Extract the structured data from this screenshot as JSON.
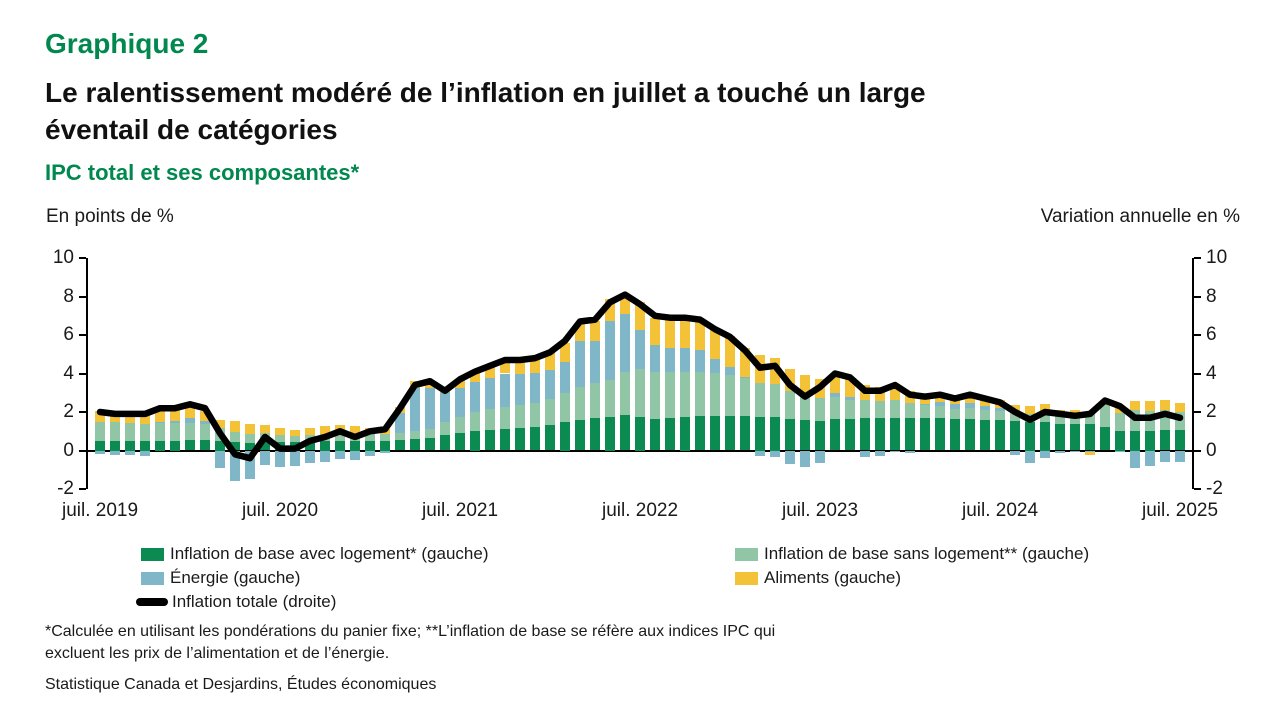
{
  "header": {
    "kicker": "Graphique 2",
    "title_lines": [
      "Le ralentissement modéré de l’inflation en juillet a touché un large",
      "éventail de catégories"
    ],
    "subtitle": "IPC total et ses composantes*"
  },
  "axis_headers": {
    "left": "En points de %",
    "right": "Variation annuelle en %"
  },
  "footnote_lines": [
    "*Calculée en utilisant les pondérations du panier fixe; **L’inflation de base se réfère aux indices IPC qui",
    "excluent les prix de l’alimentation et de l’énergie."
  ],
  "source": "Statistique Canada et Desjardins, Études économiques",
  "colors": {
    "title_green": "#00884e",
    "core_with_shelter": "#0b8a52",
    "core_without_shelter": "#90c6a6",
    "energy": "#7fb7c9",
    "food": "#f3c237",
    "total_line": "#000000"
  },
  "chart_data": {
    "type": "bar",
    "subtype": "stacked-bars-with-line-overlay",
    "ylim": [
      -2,
      10
    ],
    "y_ticks": [
      10,
      8,
      6,
      4,
      2,
      0,
      -2
    ],
    "x_tick_labels": [
      "juil. 2019",
      "juil. 2020",
      "juil. 2021",
      "juil. 2022",
      "juil. 2023",
      "juil. 2024",
      "juil. 2025"
    ],
    "grid": "off",
    "legend_position": "bottom",
    "months": [
      "2019-07",
      "2019-08",
      "2019-09",
      "2019-10",
      "2019-11",
      "2019-12",
      "2020-01",
      "2020-02",
      "2020-03",
      "2020-04",
      "2020-05",
      "2020-06",
      "2020-07",
      "2020-08",
      "2020-09",
      "2020-10",
      "2020-11",
      "2020-12",
      "2021-01",
      "2021-02",
      "2021-03",
      "2021-04",
      "2021-05",
      "2021-06",
      "2021-07",
      "2021-08",
      "2021-09",
      "2021-10",
      "2021-11",
      "2021-12",
      "2022-01",
      "2022-02",
      "2022-03",
      "2022-04",
      "2022-05",
      "2022-06",
      "2022-07",
      "2022-08",
      "2022-09",
      "2022-10",
      "2022-11",
      "2022-12",
      "2023-01",
      "2023-02",
      "2023-03",
      "2023-04",
      "2023-05",
      "2023-06",
      "2023-07",
      "2023-08",
      "2023-09",
      "2023-10",
      "2023-11",
      "2023-12",
      "2024-01",
      "2024-02",
      "2024-03",
      "2024-04",
      "2024-05",
      "2024-06",
      "2024-07",
      "2024-08",
      "2024-09",
      "2024-10",
      "2024-11",
      "2024-12",
      "2025-01",
      "2025-02",
      "2025-03",
      "2025-04",
      "2025-05",
      "2025-06",
      "2025-07"
    ],
    "series": [
      {
        "name": "Inflation de base avec logement* (gauche)",
        "type": "bar",
        "color": "#0b8a52",
        "values": [
          0.5,
          0.5,
          0.5,
          0.5,
          0.5,
          0.5,
          0.55,
          0.55,
          0.5,
          0.45,
          0.4,
          0.45,
          0.45,
          0.45,
          0.45,
          0.5,
          0.5,
          0.5,
          0.5,
          0.5,
          0.55,
          0.6,
          0.65,
          0.8,
          0.9,
          1.0,
          1.05,
          1.1,
          1.15,
          1.2,
          1.35,
          1.5,
          1.6,
          1.7,
          1.75,
          1.85,
          1.75,
          1.65,
          1.7,
          1.75,
          1.8,
          1.8,
          1.8,
          1.8,
          1.75,
          1.75,
          1.65,
          1.6,
          1.55,
          1.65,
          1.65,
          1.7,
          1.7,
          1.7,
          1.7,
          1.7,
          1.7,
          1.65,
          1.65,
          1.6,
          1.6,
          1.55,
          1.5,
          1.5,
          1.4,
          1.4,
          1.4,
          1.2,
          1.0,
          1.0,
          1.0,
          1.05,
          1.05
        ]
      },
      {
        "name": "Inflation de base sans logement** (gauche)",
        "type": "bar",
        "color": "#90c6a6",
        "values": [
          1.0,
          1.0,
          0.95,
          0.9,
          0.95,
          0.95,
          0.9,
          0.85,
          0.65,
          0.5,
          0.45,
          0.45,
          0.35,
          0.3,
          0.35,
          0.35,
          0.4,
          0.35,
          0.35,
          0.35,
          0.35,
          0.4,
          0.45,
          0.7,
          0.85,
          1.0,
          1.1,
          1.15,
          1.2,
          1.25,
          1.35,
          1.5,
          1.7,
          1.8,
          1.9,
          2.25,
          2.5,
          2.45,
          2.4,
          2.35,
          2.3,
          2.25,
          2.1,
          1.95,
          1.75,
          1.7,
          1.45,
          1.3,
          1.2,
          1.15,
          0.95,
          0.9,
          0.85,
          0.9,
          0.75,
          0.65,
          0.6,
          0.5,
          0.55,
          0.5,
          0.45,
          0.4,
          0.4,
          0.45,
          0.4,
          0.45,
          0.55,
          1.2,
          0.95,
          1.1,
          1.05,
          1.05,
          0.95
        ]
      },
      {
        "name": "Énergie (gauche)",
        "type": "bar",
        "color": "#7fb7c9",
        "values": [
          -0.2,
          -0.25,
          -0.25,
          -0.3,
          0.05,
          0.1,
          0.25,
          0.15,
          -0.9,
          -1.6,
          -1.5,
          -0.75,
          -0.85,
          -0.8,
          -0.65,
          -0.6,
          -0.45,
          -0.5,
          -0.3,
          -0.15,
          1.05,
          2.25,
          2.15,
          1.55,
          1.5,
          1.55,
          1.6,
          1.75,
          1.6,
          1.6,
          1.5,
          1.6,
          2.4,
          2.2,
          3.1,
          3.0,
          2.0,
          1.4,
          1.2,
          1.2,
          1.1,
          0.7,
          0.45,
          0.05,
          -0.3,
          -0.35,
          -0.7,
          -0.85,
          -0.65,
          0.2,
          0.2,
          -0.35,
          -0.3,
          -0.1,
          -0.15,
          0.05,
          0.2,
          0.25,
          0.25,
          0.2,
          0.15,
          -0.25,
          -0.65,
          -0.4,
          -0.15,
          -0.1,
          -0.1,
          0.15,
          -0.1,
          -0.9,
          -0.8,
          -0.6,
          -0.6
        ]
      },
      {
        "name": "Aliments (gauche)",
        "type": "bar",
        "color": "#f3c237",
        "values": [
          0.55,
          0.55,
          0.55,
          0.55,
          0.6,
          0.6,
          0.55,
          0.5,
          0.45,
          0.6,
          0.55,
          0.45,
          0.35,
          0.3,
          0.35,
          0.4,
          0.4,
          0.4,
          0.3,
          0.25,
          0.3,
          0.35,
          0.35,
          0.25,
          0.45,
          0.5,
          0.6,
          0.65,
          0.7,
          0.75,
          0.9,
          1.0,
          1.0,
          1.05,
          1.1,
          1.05,
          1.45,
          1.4,
          1.55,
          1.6,
          1.6,
          1.6,
          1.6,
          1.55,
          1.45,
          1.35,
          1.15,
          1.0,
          0.95,
          1.0,
          0.95,
          0.8,
          0.75,
          0.7,
          0.65,
          0.5,
          0.45,
          0.4,
          0.45,
          0.45,
          0.4,
          0.4,
          0.4,
          0.45,
          0.3,
          0.25,
          -0.15,
          0.05,
          0.3,
          0.45,
          0.5,
          0.5,
          0.45
        ]
      },
      {
        "name": "Inflation totale (droite)",
        "type": "line",
        "color": "#000000",
        "values": [
          2.0,
          1.9,
          1.9,
          1.9,
          2.2,
          2.2,
          2.4,
          2.2,
          0.9,
          -0.2,
          -0.4,
          0.7,
          0.1,
          0.1,
          0.5,
          0.7,
          1.0,
          0.7,
          1.0,
          1.1,
          2.2,
          3.4,
          3.6,
          3.1,
          3.7,
          4.1,
          4.4,
          4.7,
          4.7,
          4.8,
          5.1,
          5.7,
          6.7,
          6.8,
          7.7,
          8.1,
          7.6,
          7.0,
          6.9,
          6.9,
          6.8,
          6.3,
          5.9,
          5.2,
          4.3,
          4.4,
          3.4,
          2.8,
          3.3,
          4.0,
          3.8,
          3.1,
          3.1,
          3.4,
          2.9,
          2.8,
          2.9,
          2.7,
          2.9,
          2.7,
          2.5,
          2.0,
          1.6,
          2.0,
          1.9,
          1.8,
          1.9,
          2.6,
          2.3,
          1.7,
          1.7,
          1.9,
          1.7
        ]
      }
    ]
  }
}
